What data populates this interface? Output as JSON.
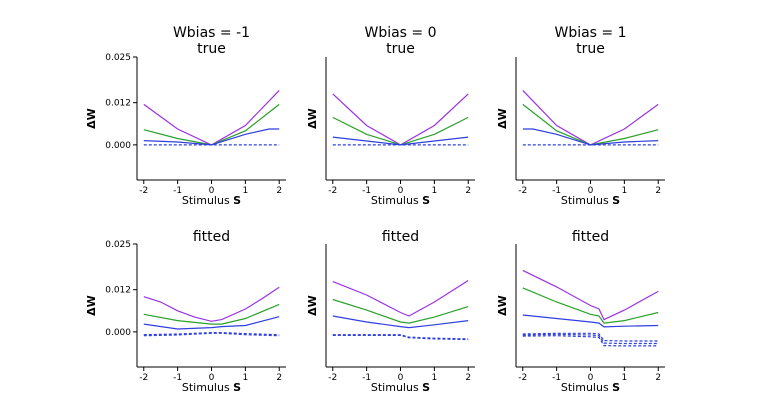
{
  "chart_data": [
    {
      "type": "line",
      "title_lines": [
        "Wbias = -1",
        "true"
      ],
      "xlabel": "Stimulus",
      "xlabel_bold": "S",
      "ylabel": "ΔW",
      "xlim": [
        -2.2,
        2.2
      ],
      "ylim": [
        -0.01,
        0.025
      ],
      "xticks": [
        "-2",
        "-1",
        "0",
        "1",
        "2"
      ],
      "yticks": [
        "0.025",
        "0.012",
        "0.000"
      ],
      "series": [
        {
          "color": "#9a32e6",
          "dashed": false,
          "x": [
            -2,
            -1,
            0,
            1,
            2
          ],
          "y": [
            0.0115,
            0.0045,
            0.0,
            0.0055,
            0.0155
          ]
        },
        {
          "color": "#2aa02a",
          "dashed": false,
          "x": [
            -2,
            -1,
            0,
            1,
            2
          ],
          "y": [
            0.0043,
            0.0018,
            0.0,
            0.004,
            0.0115
          ]
        },
        {
          "color": "#2f3fe0",
          "dashed": false,
          "x": [
            -2,
            -1,
            0,
            1,
            1.7,
            2
          ],
          "y": [
            0.0012,
            0.0008,
            0.0,
            0.003,
            0.0045,
            0.0045
          ]
        },
        {
          "color": "#2f3fe0",
          "dashed": true,
          "x": [
            -2,
            -1,
            0,
            1,
            2
          ],
          "y": [
            0.0,
            0.0,
            0.0,
            0.0,
            0.0
          ]
        }
      ]
    },
    {
      "type": "line",
      "title_lines": [
        "Wbias = 0",
        "true"
      ],
      "xlabel": "Stimulus",
      "xlabel_bold": "S",
      "ylabel": "ΔW",
      "xlim": [
        -2.2,
        2.2
      ],
      "ylim": [
        -0.01,
        0.025
      ],
      "xticks": [
        "-2",
        "-1",
        "0",
        "1",
        "2"
      ],
      "yticks": [],
      "series": [
        {
          "color": "#9a32e6",
          "dashed": false,
          "x": [
            -2,
            -1,
            0,
            1,
            2
          ],
          "y": [
            0.0145,
            0.0055,
            0.0,
            0.0055,
            0.0145
          ]
        },
        {
          "color": "#2aa02a",
          "dashed": false,
          "x": [
            -2,
            -1,
            0,
            1,
            2
          ],
          "y": [
            0.0078,
            0.003,
            0.0,
            0.003,
            0.0078
          ]
        },
        {
          "color": "#2f3fe0",
          "dashed": false,
          "x": [
            -2,
            -1,
            0,
            1,
            2
          ],
          "y": [
            0.0022,
            0.0011,
            0.0,
            0.0011,
            0.0022
          ]
        },
        {
          "color": "#2f3fe0",
          "dashed": true,
          "x": [
            -2,
            -1,
            0,
            1,
            2
          ],
          "y": [
            0.0,
            0.0,
            0.0,
            0.0,
            0.0
          ]
        }
      ]
    },
    {
      "type": "line",
      "title_lines": [
        "Wbias = 1",
        "true"
      ],
      "xlabel": "Stimulus",
      "xlabel_bold": "S",
      "ylabel": "ΔW",
      "xlim": [
        -2.2,
        2.2
      ],
      "ylim": [
        -0.01,
        0.025
      ],
      "xticks": [
        "-2",
        "-1",
        "0",
        "1",
        "2"
      ],
      "yticks": [],
      "series": [
        {
          "color": "#9a32e6",
          "dashed": false,
          "x": [
            -2,
            -1,
            0,
            1,
            2
          ],
          "y": [
            0.0155,
            0.0055,
            0.0,
            0.0045,
            0.0115
          ]
        },
        {
          "color": "#2aa02a",
          "dashed": false,
          "x": [
            -2,
            -1,
            0,
            1,
            2
          ],
          "y": [
            0.0115,
            0.004,
            0.0,
            0.0018,
            0.0043
          ]
        },
        {
          "color": "#2f3fe0",
          "dashed": false,
          "x": [
            -2,
            -1.7,
            -1,
            0,
            1,
            2
          ],
          "y": [
            0.0045,
            0.0045,
            0.003,
            0.0,
            0.0008,
            0.0012
          ]
        },
        {
          "color": "#2f3fe0",
          "dashed": true,
          "x": [
            -2,
            -1,
            0,
            1,
            2
          ],
          "y": [
            0.0,
            0.0,
            0.0,
            0.0,
            0.0
          ]
        }
      ]
    },
    {
      "type": "line",
      "title_lines": [
        "fitted"
      ],
      "xlabel": "Stimulus",
      "xlabel_bold": "S",
      "ylabel": "ΔW",
      "xlim": [
        -2.2,
        2.2
      ],
      "ylim": [
        -0.01,
        0.025
      ],
      "xticks": [
        "-2",
        "-1",
        "0",
        "1",
        "2"
      ],
      "yticks": [
        "0.025",
        "0.012",
        "0.000"
      ],
      "series": [
        {
          "color": "#9a32e6",
          "dashed": false,
          "x": [
            -2,
            -1.5,
            -1,
            -0.5,
            0,
            0.3,
            1,
            1.5,
            2
          ],
          "y": [
            0.01,
            0.0085,
            0.006,
            0.0042,
            0.003,
            0.0035,
            0.0065,
            0.0095,
            0.0127
          ]
        },
        {
          "color": "#2aa02a",
          "dashed": false,
          "x": [
            -2,
            -1,
            0,
            0.3,
            1,
            2
          ],
          "y": [
            0.005,
            0.0032,
            0.0022,
            0.0022,
            0.0038,
            0.0078
          ]
        },
        {
          "color": "#2f3fe0",
          "dashed": false,
          "x": [
            -2,
            -1,
            0,
            0.3,
            1,
            2
          ],
          "y": [
            0.0022,
            0.0008,
            0.0012,
            0.0015,
            0.0018,
            0.0043
          ]
        },
        {
          "color": "#2f3fe0",
          "dashed": true,
          "x": [
            -2,
            -1,
            0,
            0.3,
            1,
            2
          ],
          "y": [
            -0.0008,
            -0.0006,
            -0.0002,
            -0.0002,
            -0.0005,
            -0.0008
          ]
        },
        {
          "color": "#2f3fe0",
          "dashed": true,
          "x": [
            -2,
            -1,
            0,
            0.3,
            1,
            2
          ],
          "y": [
            -0.0011,
            -0.0009,
            -0.0004,
            -0.0004,
            -0.0008,
            -0.0011
          ]
        }
      ]
    },
    {
      "type": "line",
      "title_lines": [
        "fitted"
      ],
      "xlabel": "Stimulus",
      "xlabel_bold": "S",
      "ylabel": "ΔW",
      "xlim": [
        -2.2,
        2.2
      ],
      "ylim": [
        -0.01,
        0.025
      ],
      "xticks": [
        "-2",
        "-1",
        "0",
        "1",
        "2"
      ],
      "yticks": [],
      "series": [
        {
          "color": "#9a32e6",
          "dashed": false,
          "x": [
            -2,
            -1,
            0,
            0.25,
            1,
            2
          ],
          "y": [
            0.0143,
            0.0105,
            0.0055,
            0.0045,
            0.0085,
            0.0146
          ]
        },
        {
          "color": "#2aa02a",
          "dashed": false,
          "x": [
            -2,
            -1,
            0,
            0.25,
            1,
            2
          ],
          "y": [
            0.0092,
            0.0062,
            0.0028,
            0.0025,
            0.0042,
            0.0072
          ]
        },
        {
          "color": "#2f3fe0",
          "dashed": false,
          "x": [
            -2,
            -1,
            0,
            0.25,
            1,
            2
          ],
          "y": [
            0.0045,
            0.0028,
            0.0015,
            0.0012,
            0.002,
            0.0032
          ]
        },
        {
          "color": "#2f3fe0",
          "dashed": true,
          "x": [
            -2,
            -1,
            0,
            0.25,
            1,
            2
          ],
          "y": [
            -0.0008,
            -0.0008,
            -0.0008,
            -0.0015,
            -0.0018,
            -0.002
          ]
        },
        {
          "color": "#2f3fe0",
          "dashed": true,
          "x": [
            -2,
            -1,
            0,
            0.25,
            1,
            2
          ],
          "y": [
            -0.001,
            -0.001,
            -0.001,
            -0.0017,
            -0.002,
            -0.0022
          ]
        }
      ]
    },
    {
      "type": "line",
      "title_lines": [
        "fitted"
      ],
      "xlabel": "Stimulus",
      "xlabel_bold": "S",
      "ylabel": "ΔW",
      "xlim": [
        -2.2,
        2.2
      ],
      "ylim": [
        -0.01,
        0.025
      ],
      "xticks": [
        "-2",
        "-1",
        "0",
        "1",
        "2"
      ],
      "yticks": [],
      "series": [
        {
          "color": "#9a32e6",
          "dashed": false,
          "x": [
            -2,
            -1,
            0,
            0.25,
            0.4,
            1,
            2
          ],
          "y": [
            0.0175,
            0.0128,
            0.0075,
            0.0065,
            0.0035,
            0.0062,
            0.0115
          ]
        },
        {
          "color": "#2aa02a",
          "dashed": false,
          "x": [
            -2,
            -1,
            0,
            0.25,
            0.4,
            1,
            2
          ],
          "y": [
            0.0125,
            0.0085,
            0.005,
            0.0045,
            0.0025,
            0.0032,
            0.0055
          ]
        },
        {
          "color": "#2f3fe0",
          "dashed": false,
          "x": [
            -2,
            -1,
            0,
            0.25,
            0.4,
            1,
            2
          ],
          "y": [
            0.0048,
            0.0038,
            0.0028,
            0.0025,
            0.0014,
            0.0016,
            0.0018
          ]
        },
        {
          "color": "#2f3fe0",
          "dashed": true,
          "x": [
            -2,
            -1,
            0,
            0.25,
            0.4,
            1,
            2
          ],
          "y": [
            -0.0006,
            -0.0004,
            -0.0004,
            -0.0006,
            -0.0025,
            -0.0026,
            -0.0026
          ]
        },
        {
          "color": "#2f3fe0",
          "dashed": true,
          "x": [
            -2,
            -1,
            0,
            0.25,
            0.4,
            1,
            2
          ],
          "y": [
            -0.0009,
            -0.0007,
            -0.0009,
            -0.0011,
            -0.0032,
            -0.0033,
            -0.0033
          ]
        },
        {
          "color": "#2f3fe0",
          "dashed": true,
          "x": [
            -2,
            -1,
            0,
            0.25,
            0.4,
            1,
            2
          ],
          "y": [
            -0.0012,
            -0.0011,
            -0.0014,
            -0.0016,
            -0.0039,
            -0.004,
            -0.004
          ]
        }
      ]
    }
  ]
}
